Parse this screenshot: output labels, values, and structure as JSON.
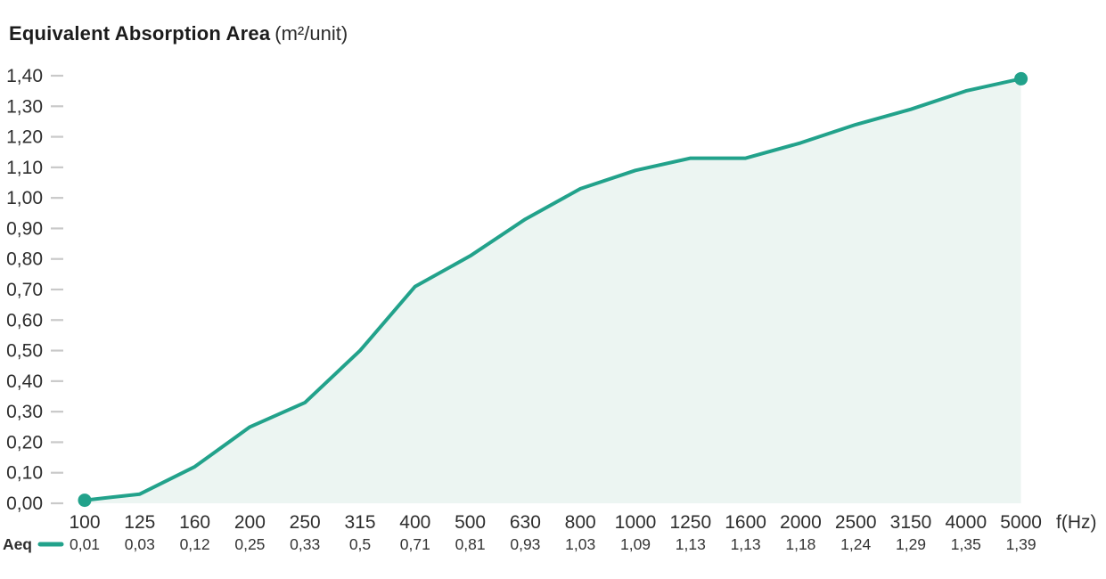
{
  "title": {
    "main": "Equivalent Absorption Area",
    "unit": "(m²/unit)"
  },
  "colors": {
    "line": "#22a28b",
    "fill": "#ecf5f2",
    "text_dark": "#2e2e2e",
    "text_values": "#343434",
    "tick_mark": "#c9c9c9",
    "title": "#1c1c1c"
  },
  "chart_data": {
    "type": "area",
    "title": "Equivalent Absorption Area (m²/unit)",
    "xlabel": "f(Hz)",
    "ylabel": "",
    "categories": [
      "100",
      "125",
      "160",
      "200",
      "250",
      "315",
      "400",
      "500",
      "630",
      "800",
      "1000",
      "1250",
      "1600",
      "2000",
      "2500",
      "3150",
      "4000",
      "5000"
    ],
    "series": [
      {
        "name": "Aeq",
        "values": [
          0.01,
          0.03,
          0.12,
          0.25,
          0.33,
          0.5,
          0.71,
          0.81,
          0.93,
          1.03,
          1.09,
          1.13,
          1.13,
          1.18,
          1.24,
          1.29,
          1.35,
          1.39
        ],
        "labels": [
          "0,01",
          "0,03",
          "0,12",
          "0,25",
          "0,33",
          "0,5",
          "0,71",
          "0,81",
          "0,93",
          "1,03",
          "1,09",
          "1,13",
          "1,13",
          "1,18",
          "1,24",
          "1,29",
          "1,35",
          "1,39"
        ]
      }
    ],
    "ylim": [
      0,
      1.4
    ],
    "y_ticks": [
      "0,00",
      "0,10",
      "0,20",
      "0,30",
      "0,40",
      "0,50",
      "0,60",
      "0,70",
      "0,80",
      "0,90",
      "1,00",
      "1,10",
      "1,20",
      "1,30",
      "1,40"
    ],
    "grid": false,
    "legend": {
      "label": "Aeq",
      "position": "bottom-left"
    },
    "markers": "first-and-last-point"
  }
}
